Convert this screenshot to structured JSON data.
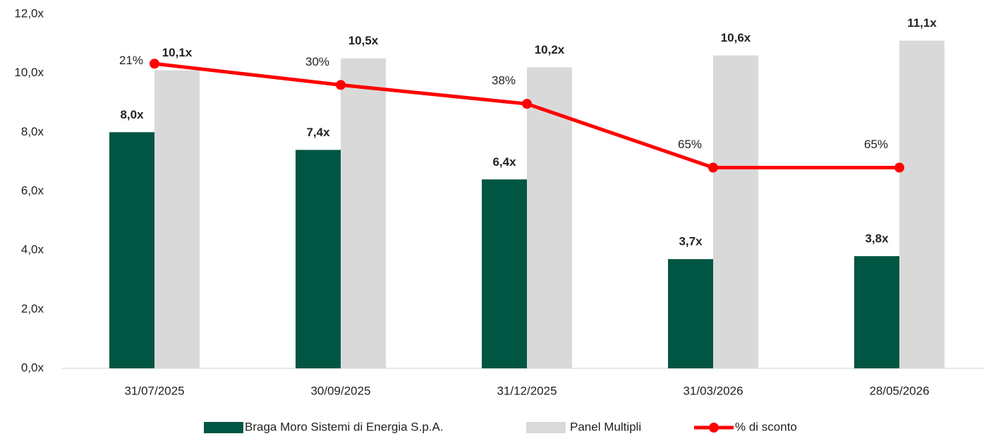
{
  "chart_data": {
    "type": "bar_line",
    "categories": [
      "31/07/2025",
      "30/09/2025",
      "31/12/2025",
      "31/03/2026",
      "28/05/2026"
    ],
    "series": [
      {
        "name": "Braga Moro Sistemi di Energia S.p.A.",
        "color": "#005643",
        "type": "bar",
        "values": [
          8.0,
          7.4,
          6.4,
          3.7,
          3.8
        ],
        "value_labels": [
          "8,0x",
          "7,4x",
          "6,4x",
          "3,7x",
          "3,8x"
        ]
      },
      {
        "name": "Panel Multipli",
        "color": "#d9d9d9",
        "type": "bar",
        "values": [
          10.1,
          10.5,
          10.2,
          10.6,
          11.1
        ],
        "value_labels": [
          "10,1x",
          "10,5x",
          "10,2x",
          "10,6x",
          "11,1x"
        ]
      },
      {
        "name": "% di sconto",
        "color": "#ff0000",
        "type": "line",
        "axis": "y2",
        "values": [
          21,
          30,
          38,
          65,
          65
        ],
        "value_labels": [
          "21%",
          "30%",
          "38%",
          "65%",
          "65%"
        ]
      }
    ],
    "ylim": [
      0,
      12
    ],
    "yticks": [
      {
        "value": 0,
        "label": "0,0x"
      },
      {
        "value": 2,
        "label": "2,0x"
      },
      {
        "value": 4,
        "label": "4,0x"
      },
      {
        "value": 6,
        "label": "6,0x"
      },
      {
        "value": 8,
        "label": "8,0x"
      },
      {
        "value": 10,
        "label": "10,0x"
      },
      {
        "value": 12,
        "label": "12,0x"
      }
    ],
    "y2lim": [
      150,
      0
    ],
    "legend": "bottom"
  }
}
